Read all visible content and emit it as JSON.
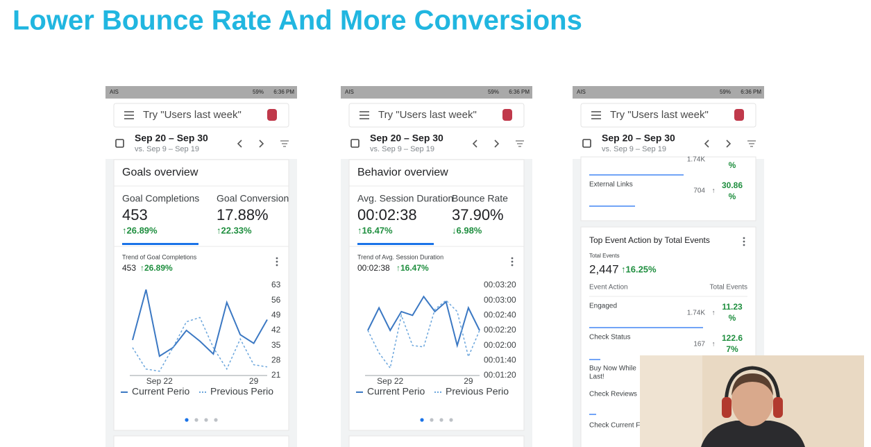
{
  "title": "Lower Bounce Rate And More Conversions",
  "phones": [
    {
      "status": {
        "carrier": "AIS",
        "battery": "59%",
        "time": "6:36 PM"
      },
      "search": "Try \"Users last week\"",
      "date_range": "Sep 20 – Sep 30",
      "compare": "vs. Sep 9 – Sep 19",
      "card_title": "Goals overview",
      "metrics": [
        {
          "label": "Goal Completions",
          "value": "453",
          "change": "↑26.89%"
        },
        {
          "label": "Goal Conversion",
          "value": "17.88%",
          "change": "↑22.33%"
        }
      ],
      "chart_data": {
        "type": "line",
        "title": "Trend of Goal Completions",
        "value": "453",
        "change": "↑26.89%",
        "categories": [
          null,
          null,
          "Sep 22",
          null,
          null,
          null,
          null,
          null,
          null,
          "29",
          null
        ],
        "series": [
          {
            "name": "Current Perio",
            "color": "#3b78c3",
            "dashed": false,
            "values": [
              37.5,
              61,
              30,
              34,
              42,
              37,
              31,
              55,
              40,
              36,
              47
            ]
          },
          {
            "name": "Previous Perio",
            "color": "#6aa5dc",
            "dashed": true,
            "values": [
              34,
              24,
              23,
              34,
              46,
              48,
              34,
              24,
              38,
              26,
              25
            ]
          }
        ],
        "ylim": [
          21,
          63
        ],
        "yticks": [
          63,
          56,
          49,
          42,
          35,
          28,
          21
        ]
      }
    },
    {
      "status": {
        "carrier": "AIS",
        "battery": "59%",
        "time": "6:36 PM"
      },
      "search": "Try \"Users last week\"",
      "date_range": "Sep 20 – Sep 30",
      "compare": "vs. Sep 9 – Sep 19",
      "card_title": "Behavior overview",
      "metrics": [
        {
          "label": "Avg. Session Duration",
          "value": "00:02:38",
          "change": "↑16.47%"
        },
        {
          "label": "Bounce Rate",
          "value": "37.90%",
          "change": "↓6.98%"
        }
      ],
      "chart_data": {
        "type": "line",
        "title": "Trend of Avg. Session Duration",
        "value": "00:02:38",
        "change": "↑16.47%",
        "categories": [
          null,
          null,
          "Sep 22",
          null,
          null,
          null,
          null,
          null,
          null,
          "29",
          null
        ],
        "series": [
          {
            "name": "Current Perio",
            "color": "#3b78c3",
            "dashed": false,
            "values": [
              140,
              170,
              140,
              165,
              160,
              185,
              165,
              178,
              120,
              170,
              140
            ]
          },
          {
            "name": "Previous Perio",
            "color": "#6aa5dc",
            "dashed": true,
            "values": [
              140,
              110,
              90,
              160,
              120,
              118,
              168,
              180,
              165,
              105,
              140
            ]
          }
        ],
        "ylim": [
          80,
          200
        ],
        "yticks": [
          {
            "value": 200,
            "label": "00:03:20"
          },
          {
            "value": 180,
            "label": "00:03:00"
          },
          {
            "value": 160,
            "label": "00:02:40"
          },
          {
            "value": 140,
            "label": "00:02:20"
          },
          {
            "value": 120,
            "label": "00:02:00"
          },
          {
            "value": 100,
            "label": "00:01:40"
          },
          {
            "value": 80,
            "label": "00:01:20"
          }
        ]
      }
    }
  ],
  "events_phone": {
    "status": {
      "carrier": "AIS",
      "battery": "59%",
      "time": "6:36 PM"
    },
    "search": "Try \"Users last week\"",
    "date_range": "Sep 20 – Sep 30",
    "compare": "vs. Sep 9 – Sep 19",
    "top_rows": [
      {
        "value": "1.74K",
        "change": [
          "%"
        ]
      },
      {
        "label": "External Links",
        "value": "704",
        "change": [
          "30.86",
          "%"
        ]
      }
    ],
    "card_title": "Top Event Action by Total Events",
    "total_label": "Total Events",
    "total": "2,447",
    "total_change": "↑16.25%",
    "columns": [
      "Event Action",
      "Total Events"
    ],
    "rows": [
      {
        "label": [
          "Engaged"
        ],
        "value": "1.74K",
        "change": [
          "11.23",
          "%"
        ]
      },
      {
        "label": [
          "Check Status"
        ],
        "value": "167",
        "change": [
          "122.6",
          "7%"
        ]
      },
      {
        "label": [
          "Buy Now While",
          "Last!"
        ]
      },
      {
        "label": [
          "Check Reviews"
        ]
      },
      {
        "label": [
          "Check Current F"
        ]
      }
    ]
  }
}
